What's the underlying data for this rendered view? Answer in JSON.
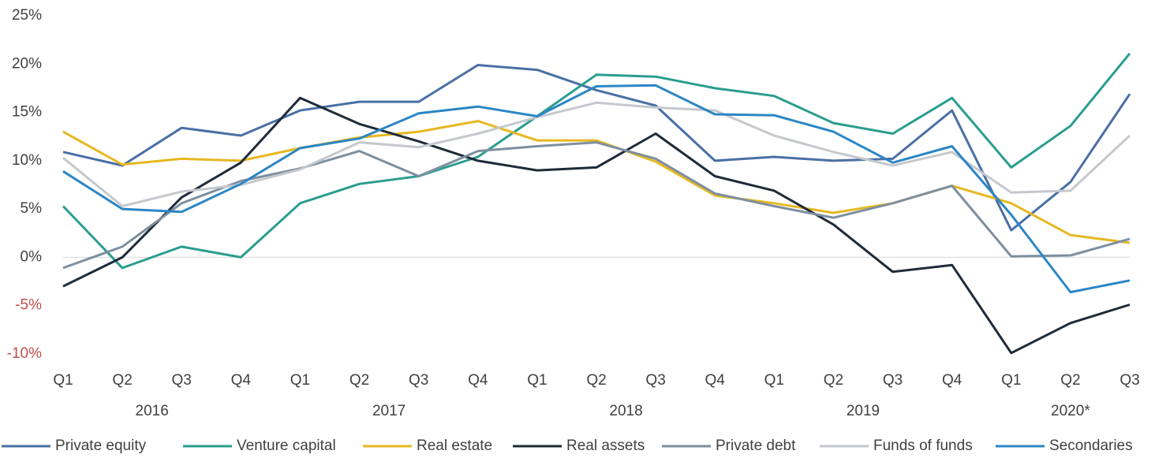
{
  "chart_data": {
    "type": "line",
    "categories": [
      "Q1",
      "Q2",
      "Q3",
      "Q4",
      "Q1",
      "Q2",
      "Q3",
      "Q4",
      "Q1",
      "Q2",
      "Q3",
      "Q4",
      "Q1",
      "Q2",
      "Q3",
      "Q4",
      "Q1",
      "Q2",
      "Q3"
    ],
    "groups": [
      {
        "label": "2016",
        "size": 4
      },
      {
        "label": "2017",
        "size": 4
      },
      {
        "label": "2018",
        "size": 4
      },
      {
        "label": "2019",
        "size": 4
      },
      {
        "label": "2020*",
        "size": 3
      }
    ],
    "series": [
      {
        "name": "Private equity",
        "color": "#4a6fa5",
        "values": [
          10.9,
          9.5,
          13.4,
          12.6,
          15.2,
          16.1,
          16.1,
          19.9,
          19.4,
          17.3,
          15.7,
          10.0,
          10.4,
          10.0,
          10.2,
          15.2,
          2.8,
          7.8,
          16.9
        ]
      },
      {
        "name": "Venture capital",
        "color": "#2a9d8f",
        "values": [
          5.3,
          -1.1,
          1.1,
          0,
          5.6,
          7.6,
          8.4,
          10.4,
          14.6,
          18.9,
          18.7,
          17.5,
          16.7,
          13.9,
          12.8,
          16.5,
          9.3,
          13.6,
          21.1
        ]
      },
      {
        "name": "Real estate",
        "color": "#e6b822",
        "values": [
          13.0,
          9.6,
          10.2,
          10.0,
          11.3,
          12.4,
          13.0,
          14.1,
          12.1,
          12.1,
          9.9,
          6.4,
          5.6,
          4.6,
          5.6,
          7.4,
          5.6,
          2.3,
          1.5
        ]
      },
      {
        "name": "Real assets",
        "color": "#1e2b3a",
        "values": [
          -3.0,
          0,
          6.2,
          9.8,
          16.5,
          13.8,
          12.0,
          10.0,
          9.0,
          9.3,
          12.8,
          8.4,
          6.9,
          3.4,
          -1.5,
          -0.8,
          -9.9,
          -6.8,
          -4.9
        ]
      },
      {
        "name": "Private debt",
        "color": "#7d8fa0",
        "values": [
          -1.1,
          1.1,
          5.6,
          7.9,
          9.2,
          11.0,
          8.4,
          11.0,
          11.5,
          11.9,
          10.2,
          6.6,
          5.3,
          4.1,
          5.6,
          7.4,
          0.1,
          0.2,
          1.9
        ]
      },
      {
        "name": "Funds of funds",
        "color": "#c5c8cd",
        "values": [
          10.3,
          5.3,
          6.8,
          7.5,
          9.1,
          11.9,
          11.4,
          12.8,
          14.5,
          16.0,
          15.5,
          15.2,
          12.6,
          10.9,
          9.5,
          10.9,
          6.7,
          6.9,
          12.6
        ]
      },
      {
        "name": "Secondaries",
        "color": "#2b86c5",
        "values": [
          8.9,
          5.0,
          4.7,
          7.6,
          11.3,
          12.3,
          14.9,
          15.6,
          14.6,
          17.7,
          17.8,
          14.8,
          14.7,
          13.0,
          9.8,
          11.5,
          4.4,
          -3.6,
          -2.4
        ]
      }
    ],
    "ylim": [
      -10,
      25
    ],
    "yticks": [
      {
        "value": 25,
        "label": "25%"
      },
      {
        "value": 20,
        "label": "20%"
      },
      {
        "value": 15,
        "label": "15%"
      },
      {
        "value": 10,
        "label": "10%"
      },
      {
        "value": 5,
        "label": "5%"
      },
      {
        "value": 0,
        "label": "0%"
      },
      {
        "value": -5,
        "label": "-5%"
      },
      {
        "value": -10,
        "label": "-10%"
      }
    ],
    "negative_label_color": "#c0504d",
    "legend": "bottom"
  }
}
